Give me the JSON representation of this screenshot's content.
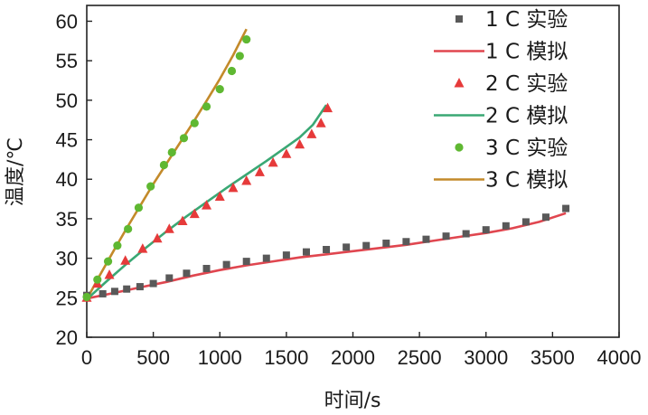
{
  "chart_data": {
    "type": "line",
    "title": "",
    "xlabel": "时间/s",
    "ylabel": "温度/℃",
    "xlim": [
      0,
      4000
    ],
    "ylim": [
      20,
      62
    ],
    "xticks": [
      0,
      500,
      1000,
      1500,
      2000,
      2500,
      3000,
      3500,
      4000
    ],
    "yticks": [
      20,
      25,
      30,
      35,
      40,
      45,
      50,
      55,
      60
    ],
    "grid": false,
    "legend_position": "top-right",
    "series": [
      {
        "name": "1 C 实验",
        "kind": "scatter",
        "marker": "square",
        "color": "#595959",
        "x": [
          0,
          120,
          210,
          300,
          400,
          500,
          620,
          750,
          900,
          1050,
          1200,
          1350,
          1500,
          1650,
          1800,
          1950,
          2100,
          2250,
          2400,
          2550,
          2700,
          2850,
          3000,
          3150,
          3300,
          3450,
          3600
        ],
        "y": [
          25.3,
          25.5,
          25.8,
          26.1,
          26.4,
          26.8,
          27.5,
          28.1,
          28.7,
          29.2,
          29.6,
          30.0,
          30.4,
          30.8,
          31.1,
          31.4,
          31.6,
          31.9,
          32.1,
          32.4,
          32.8,
          33.1,
          33.6,
          34.1,
          34.6,
          35.2,
          36.3
        ]
      },
      {
        "name": "1 C 模拟",
        "kind": "line",
        "color": "#e0464f",
        "x": [
          0,
          200,
          400,
          600,
          800,
          1000,
          1200,
          1400,
          1600,
          1800,
          2000,
          2200,
          2400,
          2600,
          2800,
          3000,
          3200,
          3400,
          3600
        ],
        "y": [
          24.9,
          25.6,
          26.3,
          27.0,
          27.8,
          28.5,
          29.1,
          29.6,
          30.1,
          30.5,
          30.9,
          31.3,
          31.7,
          32.2,
          32.7,
          33.2,
          33.8,
          34.6,
          35.7
        ]
      },
      {
        "name": "2 C 实验",
        "kind": "scatter",
        "marker": "triangle",
        "color": "#e63a3a",
        "x": [
          0,
          80,
          170,
          290,
          420,
          530,
          620,
          720,
          810,
          900,
          1000,
          1100,
          1200,
          1300,
          1400,
          1500,
          1600,
          1690,
          1760,
          1810
        ],
        "y": [
          25.0,
          26.8,
          27.9,
          29.7,
          31.2,
          32.5,
          33.7,
          34.7,
          35.6,
          36.7,
          37.8,
          38.9,
          39.8,
          40.9,
          42.1,
          43.2,
          44.4,
          45.7,
          47.1,
          49.0
        ]
      },
      {
        "name": "2 C 模拟",
        "kind": "line",
        "color": "#3aa874",
        "x": [
          0,
          150,
          300,
          450,
          600,
          750,
          900,
          1050,
          1200,
          1350,
          1500,
          1600,
          1700,
          1800
        ],
        "y": [
          24.8,
          27.1,
          29.3,
          31.4,
          33.4,
          35.3,
          37.1,
          38.9,
          40.6,
          42.3,
          44.1,
          45.3,
          46.9,
          49.4
        ]
      },
      {
        "name": "3 C 实验",
        "kind": "scatter",
        "marker": "circle",
        "color": "#5fb832",
        "x": [
          0,
          80,
          160,
          230,
          310,
          390,
          480,
          580,
          640,
          730,
          810,
          900,
          1000,
          1090,
          1150,
          1200
        ],
        "y": [
          25.1,
          27.3,
          29.6,
          31.6,
          33.7,
          36.4,
          39.1,
          41.8,
          43.4,
          45.2,
          47.1,
          49.2,
          51.4,
          53.7,
          55.6,
          57.7
        ]
      },
      {
        "name": "3 C 模拟",
        "kind": "line",
        "color": "#c38a2a",
        "x": [
          0,
          100,
          200,
          300,
          400,
          500,
          600,
          700,
          800,
          900,
          1000,
          1100,
          1200
        ],
        "y": [
          24.8,
          27.9,
          30.9,
          33.8,
          36.6,
          39.4,
          42.0,
          44.6,
          47.2,
          49.9,
          52.7,
          55.7,
          59.0
        ]
      }
    ]
  }
}
